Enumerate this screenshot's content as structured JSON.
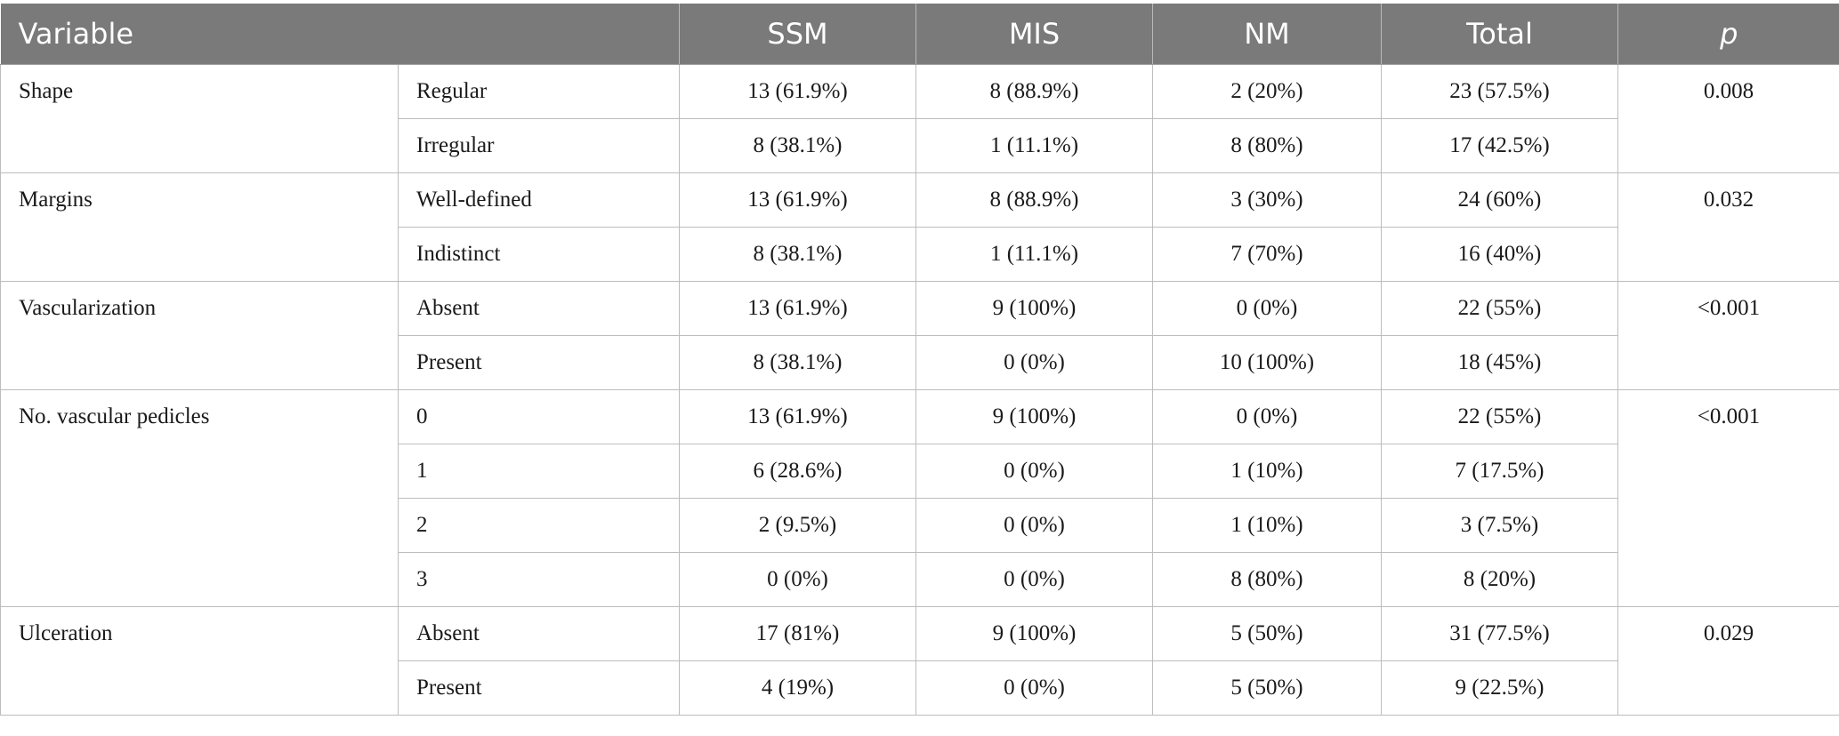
{
  "columns": {
    "variable": "Variable",
    "ssm": "SSM",
    "mis": "MIS",
    "nm": "NM",
    "total": "Total",
    "p": "p"
  },
  "groups": [
    {
      "variable": "Shape",
      "p": "0.008",
      "rows": [
        {
          "level": "Regular",
          "ssm": "13 (61.9%)",
          "mis": "8 (88.9%)",
          "nm": "2 (20%)",
          "total": "23 (57.5%)"
        },
        {
          "level": "Irregular",
          "ssm": "8 (38.1%)",
          "mis": "1 (11.1%)",
          "nm": "8 (80%)",
          "total": "17 (42.5%)"
        }
      ]
    },
    {
      "variable": "Margins",
      "p": "0.032",
      "rows": [
        {
          "level": "Well-defined",
          "ssm": "13 (61.9%)",
          "mis": "8 (88.9%)",
          "nm": "3 (30%)",
          "total": "24 (60%)"
        },
        {
          "level": "Indistinct",
          "ssm": "8 (38.1%)",
          "mis": "1 (11.1%)",
          "nm": "7 (70%)",
          "total": "16 (40%)"
        }
      ]
    },
    {
      "variable": "Vascularization",
      "p": "<0.001",
      "rows": [
        {
          "level": "Absent",
          "ssm": "13 (61.9%)",
          "mis": "9 (100%)",
          "nm": "0 (0%)",
          "total": "22 (55%)"
        },
        {
          "level": "Present",
          "ssm": "8 (38.1%)",
          "mis": "0 (0%)",
          "nm": "10 (100%)",
          "total": "18 (45%)"
        }
      ]
    },
    {
      "variable": "No. vascular pedicles",
      "p": "<0.001",
      "rows": [
        {
          "level": "0",
          "ssm": "13 (61.9%)",
          "mis": "9 (100%)",
          "nm": "0 (0%)",
          "total": "22 (55%)"
        },
        {
          "level": "1",
          "ssm": "6 (28.6%)",
          "mis": "0 (0%)",
          "nm": "1 (10%)",
          "total": "7 (17.5%)"
        },
        {
          "level": "2",
          "ssm": "2 (9.5%)",
          "mis": "0 (0%)",
          "nm": "1 (10%)",
          "total": "3 (7.5%)"
        },
        {
          "level": "3",
          "ssm": "0 (0%)",
          "mis": "0 (0%)",
          "nm": "8 (80%)",
          "total": "8 (20%)"
        }
      ]
    },
    {
      "variable": "Ulceration",
      "p": "0.029",
      "rows": [
        {
          "level": "Absent",
          "ssm": "17 (81%)",
          "mis": "9 (100%)",
          "nm": "5 (50%)",
          "total": "31 (77.5%)"
        },
        {
          "level": "Present",
          "ssm": "4 (19%)",
          "mis": "0 (0%)",
          "nm": "5 (50%)",
          "total": "9 (22.5%)"
        }
      ]
    }
  ]
}
